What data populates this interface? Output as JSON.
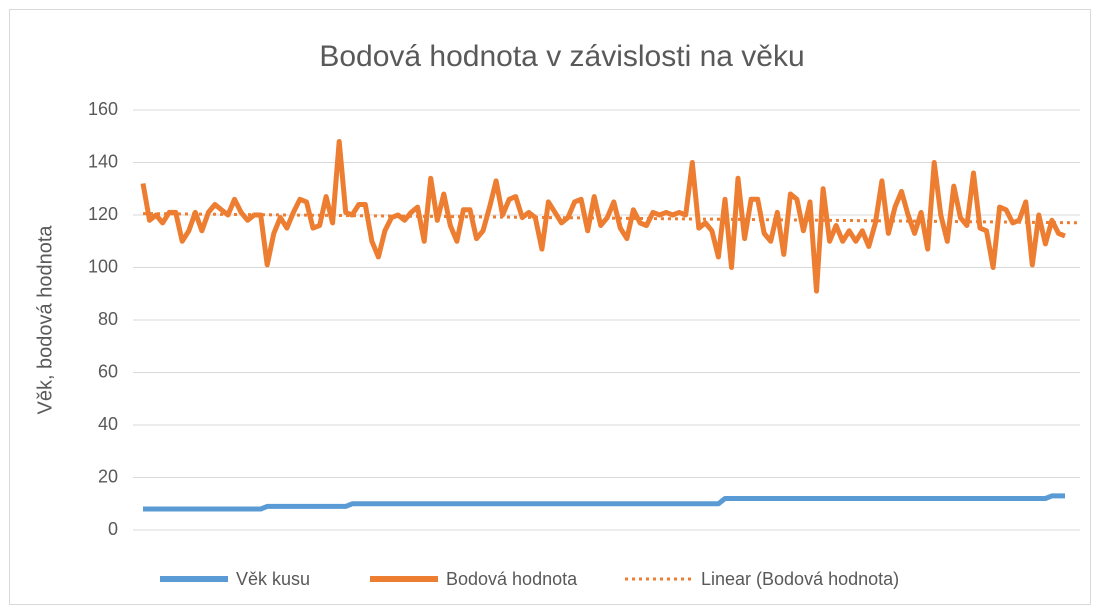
{
  "chart_data": {
    "type": "line",
    "title": "Bodová hodnota v závislosti na věku",
    "y_label": "Věk, bodová hodnota",
    "ylim": [
      0,
      160
    ],
    "yticks": [
      0,
      20,
      40,
      60,
      80,
      100,
      120,
      140,
      160
    ],
    "grid": true,
    "legend": "bottom",
    "series": [
      {
        "name": "Věk kusu",
        "color": "#5b9bd5",
        "values": [
          8,
          8,
          8,
          8,
          8,
          8,
          8,
          8,
          8,
          8,
          8,
          8,
          8,
          8,
          8,
          8,
          8,
          8,
          8,
          9,
          9,
          9,
          9,
          9,
          9,
          9,
          9,
          9,
          9,
          9,
          9,
          9,
          10,
          10,
          10,
          10,
          10,
          10,
          10,
          10,
          10,
          10,
          10,
          10,
          10,
          10,
          10,
          10,
          10,
          10,
          10,
          10,
          10,
          10,
          10,
          10,
          10,
          10,
          10,
          10,
          10,
          10,
          10,
          10,
          10,
          10,
          10,
          10,
          10,
          10,
          10,
          10,
          10,
          10,
          10,
          10,
          10,
          10,
          10,
          10,
          10,
          10,
          10,
          10,
          10,
          10,
          10,
          10,
          10,
          12,
          12,
          12,
          12,
          12,
          12,
          12,
          12,
          12,
          12,
          12,
          12,
          12,
          12,
          12,
          12,
          12,
          12,
          12,
          12,
          12,
          12,
          12,
          12,
          12,
          12,
          12,
          12,
          12,
          12,
          12,
          12,
          12,
          12,
          12,
          12,
          12,
          12,
          12,
          12,
          12,
          12,
          12,
          12,
          12,
          12,
          12,
          12,
          12,
          12,
          13,
          13,
          13
        ]
      },
      {
        "name": "Bodová hodnota",
        "color": "#ed7d31",
        "values": [
          132,
          118,
          120,
          117,
          121,
          121,
          110,
          114,
          121,
          114,
          121,
          124,
          122,
          120,
          126,
          121,
          118,
          120,
          120,
          101,
          113,
          119,
          115,
          121,
          126,
          125,
          115,
          116,
          127,
          117,
          148,
          121,
          120,
          124,
          124,
          110,
          104,
          114,
          119,
          120,
          118,
          121,
          123,
          110,
          134,
          118,
          128,
          116,
          110,
          122,
          122,
          111,
          114,
          123,
          133,
          120,
          126,
          127,
          119,
          121,
          119,
          107,
          125,
          121,
          117,
          119,
          125,
          126,
          114,
          127,
          116,
          119,
          125,
          115,
          111,
          122,
          117,
          116,
          121,
          120,
          121,
          120,
          121,
          120,
          140,
          115,
          117,
          114,
          104,
          126,
          100,
          134,
          111,
          126,
          126,
          113,
          110,
          121,
          105,
          128,
          126,
          114,
          125,
          91,
          130,
          110,
          116,
          110,
          114,
          110,
          114,
          108,
          117,
          133,
          113,
          123,
          129,
          120,
          113,
          121,
          107,
          140,
          120,
          110,
          131,
          119,
          116,
          136,
          115,
          114,
          100,
          123,
          122,
          117,
          118,
          125,
          101,
          120,
          109,
          118,
          113,
          112
        ]
      }
    ],
    "trendline": {
      "name": "Linear (Bodová hodnota)",
      "color": "#ed7d31",
      "of": 1
    }
  }
}
